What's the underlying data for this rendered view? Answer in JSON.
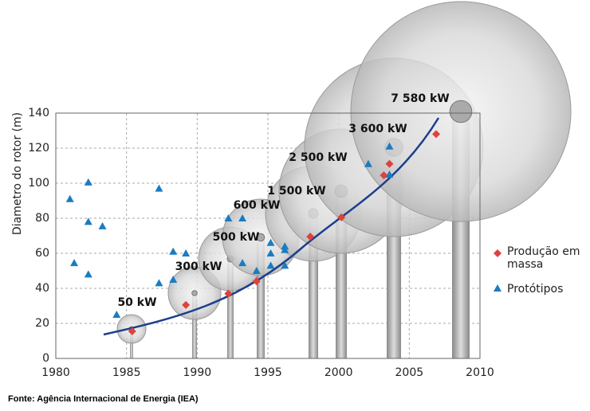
{
  "chart_data": {
    "type": "scatter",
    "y_label": "Diametro do rotor (m)",
    "xlim": [
      1980,
      2010
    ],
    "xticks": [
      1980,
      1985,
      1990,
      1995,
      2000,
      2005,
      2010
    ],
    "ylim": [
      0,
      140
    ],
    "yticks": [
      0,
      20,
      40,
      60,
      80,
      100,
      120,
      140
    ],
    "grid": true,
    "annotations": [
      "50 kW",
      "300 kW",
      "500 kW",
      "600 kW",
      "1 500 kW",
      "2 500 kW",
      "3 600 kW",
      "7 580 kW"
    ],
    "series": [
      {
        "name": "Produção em massa",
        "color": "#e0413e",
        "marker": "diamond",
        "x": [
          1985.4,
          1989.2,
          1992.2,
          1994.2,
          1998,
          2000.2,
          2003.2,
          2003.6,
          2006.9
        ],
        "values": [
          15.5,
          30.5,
          37,
          44,
          69.5,
          80.5,
          104.5,
          111,
          128
        ]
      },
      {
        "name": "Protótipos",
        "color": "#1a7cc1",
        "marker": "triangle",
        "x": [
          1981,
          1981.3,
          1982.3,
          1982.3,
          1982.3,
          1983.3,
          1984.3,
          1987.3,
          1987.3,
          1988.3,
          1988.3,
          1989.2,
          1992.2,
          1993.2,
          1993.2,
          1994.2,
          1995.2,
          1995.2,
          1995.2,
          1996.2,
          1996.2,
          1996.2,
          2002.1,
          2003.6,
          2003.6
        ],
        "values": [
          91,
          54.5,
          100.5,
          78,
          48,
          75.5,
          25,
          97,
          43,
          61,
          45,
          60,
          80,
          80,
          54.5,
          50,
          66,
          60,
          53,
          64,
          62,
          53,
          111,
          121,
          105
        ]
      }
    ]
  },
  "source": "Fonte: Agência Internacional de Energia (IEA)"
}
